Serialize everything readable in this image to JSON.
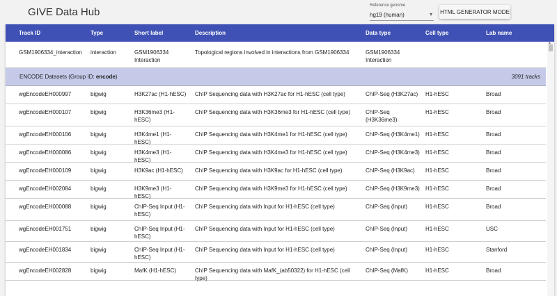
{
  "app": {
    "title": "GIVE Data Hub"
  },
  "genome": {
    "label": "Reference genome",
    "value": "hg19 (human)",
    "caret": "▾"
  },
  "mode_button": {
    "label": "HTML GENERATOR MODE"
  },
  "table": {
    "columns": [
      "Track ID",
      "Type",
      "Short label",
      "Description",
      "Data type",
      "Cell type",
      "Lab name"
    ],
    "top_row": {
      "id": "GSM1906334_interaction",
      "type": "interaction",
      "short": "GSM1906334 Interaction",
      "desc": "Topological regions involved in interactions from GSM1906334",
      "dtype": "GSM1906334 Interaction",
      "cell": "",
      "lab": ""
    },
    "group": {
      "label_prefix": "ENCODE Datasets (Group ID: ",
      "group_id": "encode",
      "label_suffix": ")",
      "count": "3091 tracks"
    },
    "rows": [
      {
        "id": "wgEncodeEH000997",
        "type": "bigwig",
        "short": "H3K27ac (H1-hESC)",
        "desc": "ChIP Sequencing data with H3K27ac for H1-hESC (cell type)",
        "dtype": "ChIP-Seq (H3K27ac)",
        "cell": "H1-hESC",
        "lab": "Broad"
      },
      {
        "id": "wgEncodeEH000107",
        "type": "bigwig",
        "short": "H3K36me3 (H1-hESC)",
        "desc": "ChIP Sequencing data with H3K36me3 for H1-hESC (cell type)",
        "dtype": "ChIP-Seq (H3K36me3)",
        "cell": "H1-hESC",
        "lab": "Broad"
      },
      {
        "id": "wgEncodeEH000106",
        "type": "bigwig",
        "short": "H3K4me1 (H1-hESC)",
        "desc": "ChIP Sequencing data with H3K4me1 for H1-hESC (cell type)",
        "dtype": "ChIP-Seq (H3K4me1)",
        "cell": "H1-hESC",
        "lab": "Broad"
      },
      {
        "id": "wgEncodeEH000086",
        "type": "bigwig",
        "short": "H3K4me3 (H1-hESC)",
        "desc": "ChIP Sequencing data with H3K4me3 for H1-hESC (cell type)",
        "dtype": "ChIP-Seq (H3K4me3)",
        "cell": "H1-hESC",
        "lab": "Broad"
      },
      {
        "id": "wgEncodeEH000109",
        "type": "bigwig",
        "short": "H3K9ac (H1-hESC)",
        "desc": "ChIP Sequencing data with H3K9ac for H1-hESC (cell type)",
        "dtype": "ChIP-Seq (H3K9ac)",
        "cell": "H1-hESC",
        "lab": "Broad"
      },
      {
        "id": "wgEncodeEH002084",
        "type": "bigwig",
        "short": "H3K9me3 (H1-hESC)",
        "desc": "ChIP Sequencing data with H3K9me3 for H1-hESC (cell type)",
        "dtype": "ChIP-Seq (H3K9me3)",
        "cell": "H1-hESC",
        "lab": "Broad"
      },
      {
        "id": "wgEncodeEH000088",
        "type": "bigwig",
        "short": "ChIP-Seq Input (H1-hESC)",
        "desc": "ChIP Sequencing data with Input for H1-hESC (cell type)",
        "dtype": "ChIP-Seq (Input)",
        "cell": "H1-hESC",
        "lab": "Broad"
      },
      {
        "id": "wgEncodeEH001751",
        "type": "bigwig",
        "short": "ChIP-Seq Input (H1-hESC)",
        "desc": "ChIP Sequencing data with Input for H1-hESC (cell type)",
        "dtype": "ChIP-Seq (Input)",
        "cell": "H1-hESC",
        "lab": "USC"
      },
      {
        "id": "wgEncodeEH001834",
        "type": "bigwig",
        "short": "ChIP-Seq Input (H1-hESC)",
        "desc": "ChIP Sequencing data with Input for H1-hESC (cell type)",
        "dtype": "ChIP-Seq (Input)",
        "cell": "H1-hESC",
        "lab": "Stanford"
      },
      {
        "id": "wgEncodeEH002828",
        "type": "bigwig",
        "short": "MafK (H1-hESC)",
        "desc": "ChIP Sequencing data with MafK_(ab50322) for H1-hESC (cell type)",
        "dtype": "ChIP-Seq (MafK)",
        "cell": "H1-hESC",
        "lab": "Broad"
      }
    ]
  },
  "scrollbar": {
    "up_arrow": "▲"
  }
}
